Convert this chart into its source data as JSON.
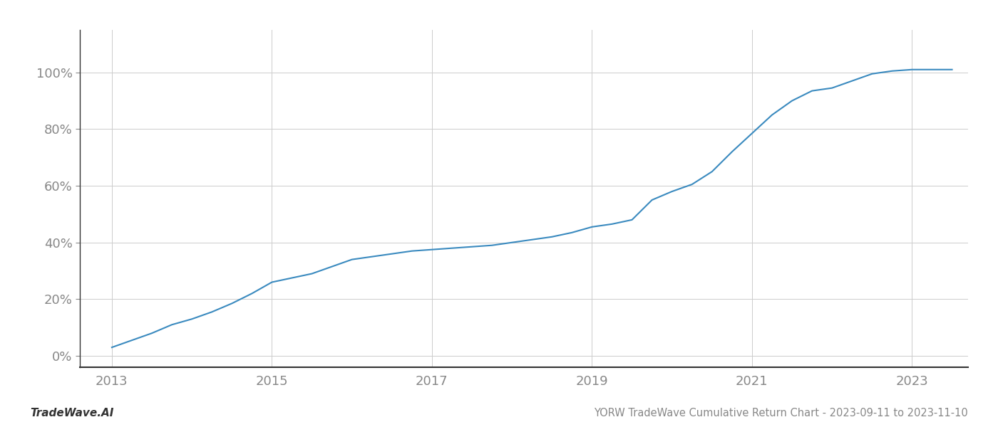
{
  "title": "YORW TradeWave Cumulative Return Chart - 2023-09-11 to 2023-11-10",
  "watermark": "TradeWave.AI",
  "line_color": "#3a8abf",
  "line_width": 1.5,
  "background_color": "#ffffff",
  "grid_color": "#cccccc",
  "x_years": [
    2013.0,
    2013.25,
    2013.5,
    2013.75,
    2014.0,
    2014.25,
    2014.5,
    2014.75,
    2015.0,
    2015.25,
    2015.5,
    2015.75,
    2016.0,
    2016.25,
    2016.5,
    2016.75,
    2017.0,
    2017.25,
    2017.5,
    2017.75,
    2018.0,
    2018.25,
    2018.5,
    2018.75,
    2019.0,
    2019.25,
    2019.5,
    2019.75,
    2020.0,
    2020.25,
    2020.5,
    2020.75,
    2021.0,
    2021.25,
    2021.5,
    2021.75,
    2022.0,
    2022.25,
    2022.5,
    2022.75,
    2023.0,
    2023.25,
    2023.5
  ],
  "y_values": [
    3.0,
    5.5,
    8.0,
    11.0,
    13.0,
    15.5,
    18.5,
    22.0,
    26.0,
    27.5,
    29.0,
    31.5,
    34.0,
    35.0,
    36.0,
    37.0,
    37.5,
    38.0,
    38.5,
    39.0,
    40.0,
    41.0,
    42.0,
    43.5,
    45.5,
    46.5,
    48.0,
    55.0,
    58.0,
    60.5,
    65.0,
    72.0,
    78.5,
    85.0,
    90.0,
    93.5,
    94.5,
    97.0,
    99.5,
    100.5,
    101.0,
    101.0,
    101.0
  ],
  "xlim": [
    2012.6,
    2023.7
  ],
  "ylim": [
    -4,
    115
  ],
  "yticks": [
    0,
    20,
    40,
    60,
    80,
    100
  ],
  "xticks": [
    2013,
    2015,
    2017,
    2019,
    2021,
    2023
  ],
  "tick_fontsize": 13,
  "title_fontsize": 10.5,
  "watermark_fontsize": 11
}
